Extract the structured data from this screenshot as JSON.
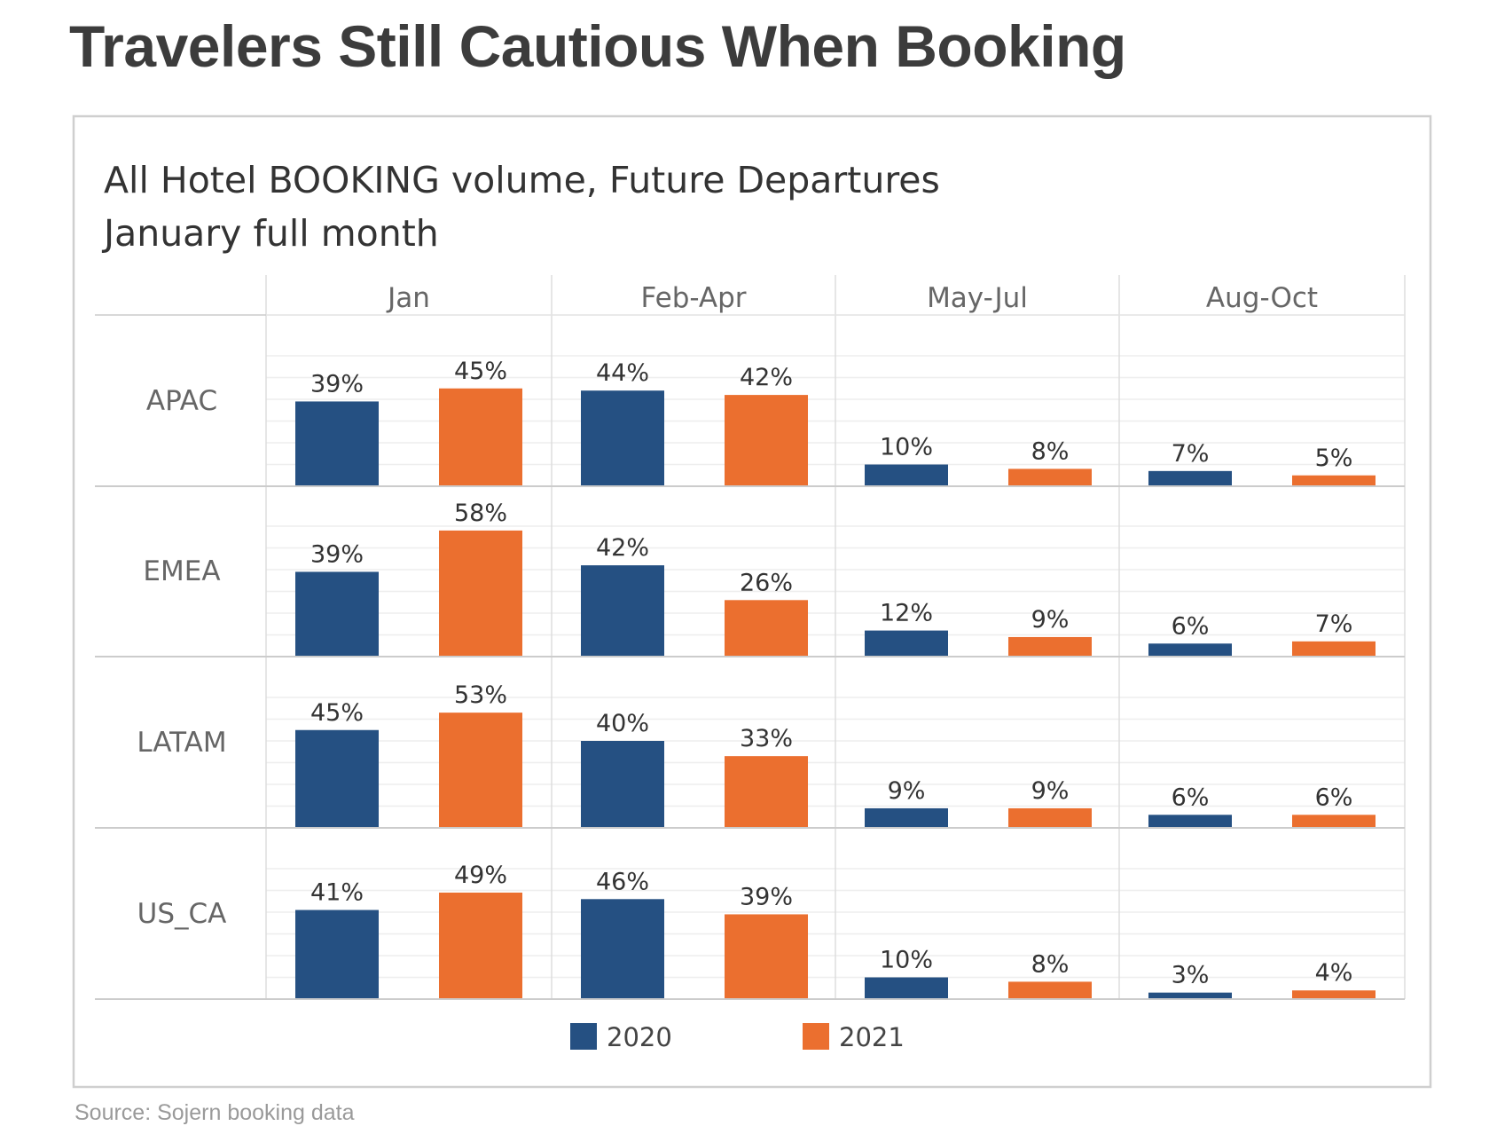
{
  "headline": "Travelers Still Cautious When Booking",
  "source": "Source: Sojern booking data",
  "chart_data": {
    "type": "bar",
    "title": "All Hotel BOOKING volume, Future Departures",
    "subtitle": "January full month",
    "columns": [
      "Jan",
      "Feb-Apr",
      "May-Jul",
      "Aug-Oct"
    ],
    "rows": [
      "APAC",
      "EMEA",
      "LATAM",
      "US_CA"
    ],
    "series": [
      {
        "name": "2020",
        "color": "#255082",
        "values": [
          [
            39,
            44,
            10,
            7
          ],
          [
            39,
            42,
            12,
            6
          ],
          [
            45,
            40,
            9,
            6
          ],
          [
            41,
            46,
            10,
            3
          ]
        ],
        "labels": [
          [
            "39%",
            "44%",
            "10%",
            "7%"
          ],
          [
            "39%",
            "42%",
            "12%",
            "6%"
          ],
          [
            "45%",
            "40%",
            "9%",
            "6%"
          ],
          [
            "41%",
            "46%",
            "10%",
            "3%"
          ]
        ]
      },
      {
        "name": "2021",
        "color": "#eb6f2f",
        "values": [
          [
            45,
            42,
            8,
            5
          ],
          [
            58,
            26,
            9,
            7
          ],
          [
            53,
            33,
            9,
            6
          ],
          [
            49,
            39,
            8,
            4
          ]
        ],
        "labels": [
          [
            "45%",
            "42%",
            "8%",
            "5%"
          ],
          [
            "58%",
            "26%",
            "9%",
            "7%"
          ],
          [
            "53%",
            "33%",
            "9%",
            "6%"
          ],
          [
            "49%",
            "39%",
            "8%",
            "4%"
          ]
        ]
      }
    ],
    "ylim": [
      0,
      60
    ],
    "legend": "bottom-center",
    "grid": true
  }
}
